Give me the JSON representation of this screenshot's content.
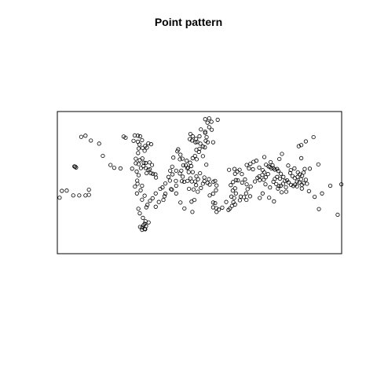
{
  "chart_data": {
    "type": "scatter",
    "title": "Point pattern",
    "xlabel": "",
    "ylabel": "",
    "xlim": [
      0,
      1
    ],
    "ylim": [
      0,
      0.5
    ],
    "axes": false,
    "grid": false,
    "point_color": "#000000",
    "points": [
      [
        0.016,
        0.221
      ],
      [
        0.033,
        0.222
      ],
      [
        0.008,
        0.197
      ],
      [
        0.056,
        0.205
      ],
      [
        0.077,
        0.205
      ],
      [
        0.099,
        0.205
      ],
      [
        0.111,
        0.207
      ],
      [
        0.111,
        0.225
      ],
      [
        0.06,
        0.307
      ],
      [
        0.063,
        0.306
      ],
      [
        0.066,
        0.303
      ],
      [
        0.084,
        0.411
      ],
      [
        0.099,
        0.415
      ],
      [
        0.118,
        0.398
      ],
      [
        0.147,
        0.387
      ],
      [
        0.16,
        0.344
      ],
      [
        0.187,
        0.312
      ],
      [
        0.2,
        0.302
      ],
      [
        0.222,
        0.3
      ],
      [
        0.24,
        0.408
      ],
      [
        0.233,
        0.412
      ],
      [
        0.283,
        0.415
      ],
      [
        0.272,
        0.416
      ],
      [
        0.291,
        0.413
      ],
      [
        0.268,
        0.397
      ],
      [
        0.283,
        0.394
      ],
      [
        0.298,
        0.399
      ],
      [
        0.289,
        0.384
      ],
      [
        0.286,
        0.37
      ],
      [
        0.3,
        0.372
      ],
      [
        0.309,
        0.379
      ],
      [
        0.315,
        0.373
      ],
      [
        0.32,
        0.388
      ],
      [
        0.33,
        0.385
      ],
      [
        0.307,
        0.362
      ],
      [
        0.284,
        0.354
      ],
      [
        0.276,
        0.334
      ],
      [
        0.276,
        0.318
      ],
      [
        0.286,
        0.315
      ],
      [
        0.29,
        0.329
      ],
      [
        0.299,
        0.335
      ],
      [
        0.304,
        0.32
      ],
      [
        0.303,
        0.308
      ],
      [
        0.311,
        0.301
      ],
      [
        0.32,
        0.295
      ],
      [
        0.314,
        0.283
      ],
      [
        0.325,
        0.297
      ],
      [
        0.329,
        0.283
      ],
      [
        0.336,
        0.281
      ],
      [
        0.345,
        0.279
      ],
      [
        0.347,
        0.268
      ],
      [
        0.324,
        0.321
      ],
      [
        0.333,
        0.312
      ],
      [
        0.311,
        0.319
      ],
      [
        0.294,
        0.301
      ],
      [
        0.279,
        0.289
      ],
      [
        0.263,
        0.299
      ],
      [
        0.286,
        0.276
      ],
      [
        0.281,
        0.257
      ],
      [
        0.282,
        0.246
      ],
      [
        0.298,
        0.239
      ],
      [
        0.293,
        0.223
      ],
      [
        0.273,
        0.236
      ],
      [
        0.28,
        0.212
      ],
      [
        0.307,
        0.204
      ],
      [
        0.298,
        0.19
      ],
      [
        0.313,
        0.163
      ],
      [
        0.285,
        0.158
      ],
      [
        0.29,
        0.142
      ],
      [
        0.307,
        0.105
      ],
      [
        0.303,
        0.1
      ],
      [
        0.312,
        0.097
      ],
      [
        0.307,
        0.087
      ],
      [
        0.298,
        0.092
      ],
      [
        0.31,
        0.114
      ],
      [
        0.321,
        0.11
      ],
      [
        0.309,
        0.086
      ],
      [
        0.291,
        0.094
      ],
      [
        0.298,
        0.084
      ],
      [
        0.301,
        0.126
      ],
      [
        0.317,
        0.172
      ],
      [
        0.326,
        0.186
      ],
      [
        0.335,
        0.195
      ],
      [
        0.346,
        0.212
      ],
      [
        0.362,
        0.228
      ],
      [
        0.37,
        0.233
      ],
      [
        0.38,
        0.247
      ],
      [
        0.396,
        0.257
      ],
      [
        0.391,
        0.27
      ],
      [
        0.405,
        0.279
      ],
      [
        0.397,
        0.292
      ],
      [
        0.418,
        0.292
      ],
      [
        0.404,
        0.306
      ],
      [
        0.408,
        0.338
      ],
      [
        0.422,
        0.36
      ],
      [
        0.425,
        0.367
      ],
      [
        0.433,
        0.348
      ],
      [
        0.431,
        0.332
      ],
      [
        0.44,
        0.334
      ],
      [
        0.455,
        0.327
      ],
      [
        0.452,
        0.311
      ],
      [
        0.46,
        0.303
      ],
      [
        0.471,
        0.308
      ],
      [
        0.443,
        0.311
      ],
      [
        0.436,
        0.292
      ],
      [
        0.462,
        0.287
      ],
      [
        0.468,
        0.265
      ],
      [
        0.473,
        0.254
      ],
      [
        0.485,
        0.254
      ],
      [
        0.495,
        0.262
      ],
      [
        0.488,
        0.241
      ],
      [
        0.479,
        0.226
      ],
      [
        0.463,
        0.228
      ],
      [
        0.458,
        0.256
      ],
      [
        0.446,
        0.253
      ],
      [
        0.438,
        0.255
      ],
      [
        0.417,
        0.256
      ],
      [
        0.431,
        0.282
      ],
      [
        0.441,
        0.271
      ],
      [
        0.418,
        0.239
      ],
      [
        0.4,
        0.227
      ],
      [
        0.38,
        0.211
      ],
      [
        0.373,
        0.189
      ],
      [
        0.357,
        0.182
      ],
      [
        0.346,
        0.165
      ],
      [
        0.377,
        0.202
      ],
      [
        0.403,
        0.225
      ],
      [
        0.418,
        0.212
      ],
      [
        0.433,
        0.18
      ],
      [
        0.447,
        0.159
      ],
      [
        0.472,
        0.183
      ],
      [
        0.475,
        0.147
      ],
      [
        0.482,
        0.189
      ],
      [
        0.494,
        0.218
      ],
      [
        0.505,
        0.231
      ],
      [
        0.512,
        0.246
      ],
      [
        0.517,
        0.255
      ],
      [
        0.528,
        0.249
      ],
      [
        0.536,
        0.243
      ],
      [
        0.517,
        0.268
      ],
      [
        0.502,
        0.283
      ],
      [
        0.489,
        0.272
      ],
      [
        0.476,
        0.287
      ],
      [
        0.457,
        0.301
      ],
      [
        0.467,
        0.32
      ],
      [
        0.476,
        0.336
      ],
      [
        0.484,
        0.344
      ],
      [
        0.49,
        0.332
      ],
      [
        0.489,
        0.365
      ],
      [
        0.5,
        0.369
      ],
      [
        0.512,
        0.377
      ],
      [
        0.503,
        0.387
      ],
      [
        0.486,
        0.392
      ],
      [
        0.466,
        0.403
      ],
      [
        0.468,
        0.421
      ],
      [
        0.476,
        0.413
      ],
      [
        0.474,
        0.398
      ],
      [
        0.488,
        0.404
      ],
      [
        0.492,
        0.393
      ],
      [
        0.5,
        0.413
      ],
      [
        0.519,
        0.374
      ],
      [
        0.529,
        0.392
      ],
      [
        0.525,
        0.41
      ],
      [
        0.52,
        0.429
      ],
      [
        0.505,
        0.437
      ],
      [
        0.528,
        0.461
      ],
      [
        0.542,
        0.464
      ],
      [
        0.534,
        0.476
      ],
      [
        0.52,
        0.473
      ],
      [
        0.564,
        0.471
      ],
      [
        0.534,
        0.445
      ],
      [
        0.543,
        0.436
      ],
      [
        0.52,
        0.425
      ],
      [
        0.522,
        0.397
      ],
      [
        0.548,
        0.392
      ],
      [
        0.498,
        0.358
      ],
      [
        0.512,
        0.343
      ],
      [
        0.524,
        0.313
      ],
      [
        0.533,
        0.262
      ],
      [
        0.549,
        0.253
      ],
      [
        0.555,
        0.256
      ],
      [
        0.56,
        0.24
      ],
      [
        0.558,
        0.223
      ],
      [
        0.548,
        0.211
      ],
      [
        0.536,
        0.205
      ],
      [
        0.548,
        0.18
      ],
      [
        0.555,
        0.178
      ],
      [
        0.548,
        0.163
      ],
      [
        0.559,
        0.16
      ],
      [
        0.568,
        0.155
      ],
      [
        0.56,
        0.147
      ],
      [
        0.58,
        0.162
      ],
      [
        0.594,
        0.182
      ],
      [
        0.612,
        0.201
      ],
      [
        0.622,
        0.196
      ],
      [
        0.619,
        0.181
      ],
      [
        0.614,
        0.168
      ],
      [
        0.607,
        0.159
      ],
      [
        0.602,
        0.154
      ],
      [
        0.617,
        0.222
      ],
      [
        0.625,
        0.23
      ],
      [
        0.61,
        0.241
      ],
      [
        0.618,
        0.252
      ],
      [
        0.628,
        0.259
      ],
      [
        0.635,
        0.258
      ],
      [
        0.633,
        0.289
      ],
      [
        0.641,
        0.295
      ],
      [
        0.623,
        0.298
      ],
      [
        0.604,
        0.295
      ],
      [
        0.625,
        0.281
      ],
      [
        0.649,
        0.28
      ],
      [
        0.65,
        0.25
      ],
      [
        0.66,
        0.261
      ],
      [
        0.666,
        0.244
      ],
      [
        0.669,
        0.227
      ],
      [
        0.664,
        0.212
      ],
      [
        0.656,
        0.199
      ],
      [
        0.645,
        0.201
      ],
      [
        0.628,
        0.212
      ],
      [
        0.642,
        0.188
      ],
      [
        0.625,
        0.173
      ],
      [
        0.665,
        0.189
      ],
      [
        0.678,
        0.202
      ],
      [
        0.695,
        0.254
      ],
      [
        0.704,
        0.267
      ],
      [
        0.71,
        0.272
      ],
      [
        0.712,
        0.259
      ],
      [
        0.71,
        0.303
      ],
      [
        0.722,
        0.294
      ],
      [
        0.728,
        0.286
      ],
      [
        0.721,
        0.277
      ],
      [
        0.733,
        0.269
      ],
      [
        0.741,
        0.28
      ],
      [
        0.753,
        0.3
      ],
      [
        0.743,
        0.307
      ],
      [
        0.734,
        0.313
      ],
      [
        0.748,
        0.305
      ],
      [
        0.76,
        0.301
      ],
      [
        0.765,
        0.296
      ],
      [
        0.773,
        0.298
      ],
      [
        0.777,
        0.291
      ],
      [
        0.786,
        0.281
      ],
      [
        0.795,
        0.27
      ],
      [
        0.783,
        0.264
      ],
      [
        0.773,
        0.27
      ],
      [
        0.765,
        0.263
      ],
      [
        0.76,
        0.253
      ],
      [
        0.77,
        0.245
      ],
      [
        0.779,
        0.238
      ],
      [
        0.786,
        0.239
      ],
      [
        0.794,
        0.246
      ],
      [
        0.801,
        0.256
      ],
      [
        0.808,
        0.258
      ],
      [
        0.813,
        0.251
      ],
      [
        0.822,
        0.242
      ],
      [
        0.83,
        0.238
      ],
      [
        0.836,
        0.243
      ],
      [
        0.843,
        0.254
      ],
      [
        0.851,
        0.251
      ],
      [
        0.86,
        0.242
      ],
      [
        0.866,
        0.248
      ],
      [
        0.857,
        0.262
      ],
      [
        0.845,
        0.27
      ],
      [
        0.835,
        0.266
      ],
      [
        0.827,
        0.273
      ],
      [
        0.819,
        0.284
      ],
      [
        0.821,
        0.294
      ],
      [
        0.834,
        0.3
      ],
      [
        0.846,
        0.286
      ],
      [
        0.853,
        0.279
      ],
      [
        0.861,
        0.274
      ],
      [
        0.866,
        0.285
      ],
      [
        0.87,
        0.298
      ],
      [
        0.874,
        0.26
      ],
      [
        0.878,
        0.246
      ],
      [
        0.86,
        0.229
      ],
      [
        0.843,
        0.237
      ],
      [
        0.805,
        0.218
      ],
      [
        0.789,
        0.216
      ],
      [
        0.804,
        0.234
      ],
      [
        0.776,
        0.229
      ],
      [
        0.748,
        0.233
      ],
      [
        0.732,
        0.244
      ],
      [
        0.726,
        0.26
      ],
      [
        0.722,
        0.212
      ],
      [
        0.745,
        0.197
      ],
      [
        0.762,
        0.184
      ],
      [
        0.712,
        0.196
      ],
      [
        0.68,
        0.236
      ],
      [
        0.688,
        0.297
      ],
      [
        0.674,
        0.3
      ],
      [
        0.666,
        0.312
      ],
      [
        0.679,
        0.316
      ],
      [
        0.69,
        0.323
      ],
      [
        0.7,
        0.327
      ],
      [
        0.728,
        0.34
      ],
      [
        0.75,
        0.322
      ],
      [
        0.757,
        0.311
      ],
      [
        0.781,
        0.333
      ],
      [
        0.79,
        0.351
      ],
      [
        0.812,
        0.31
      ],
      [
        0.849,
        0.378
      ],
      [
        0.858,
        0.382
      ],
      [
        0.874,
        0.395
      ],
      [
        0.888,
        0.299
      ],
      [
        0.858,
        0.336
      ],
      [
        0.901,
        0.41
      ],
      [
        0.918,
        0.314
      ],
      [
        0.931,
        0.212
      ],
      [
        0.96,
        0.239
      ],
      [
        0.986,
        0.137
      ],
      [
        0.999,
        0.244
      ],
      [
        0.92,
        0.157
      ],
      [
        0.905,
        0.2
      ],
      [
        0.885,
        0.22
      ]
    ]
  }
}
